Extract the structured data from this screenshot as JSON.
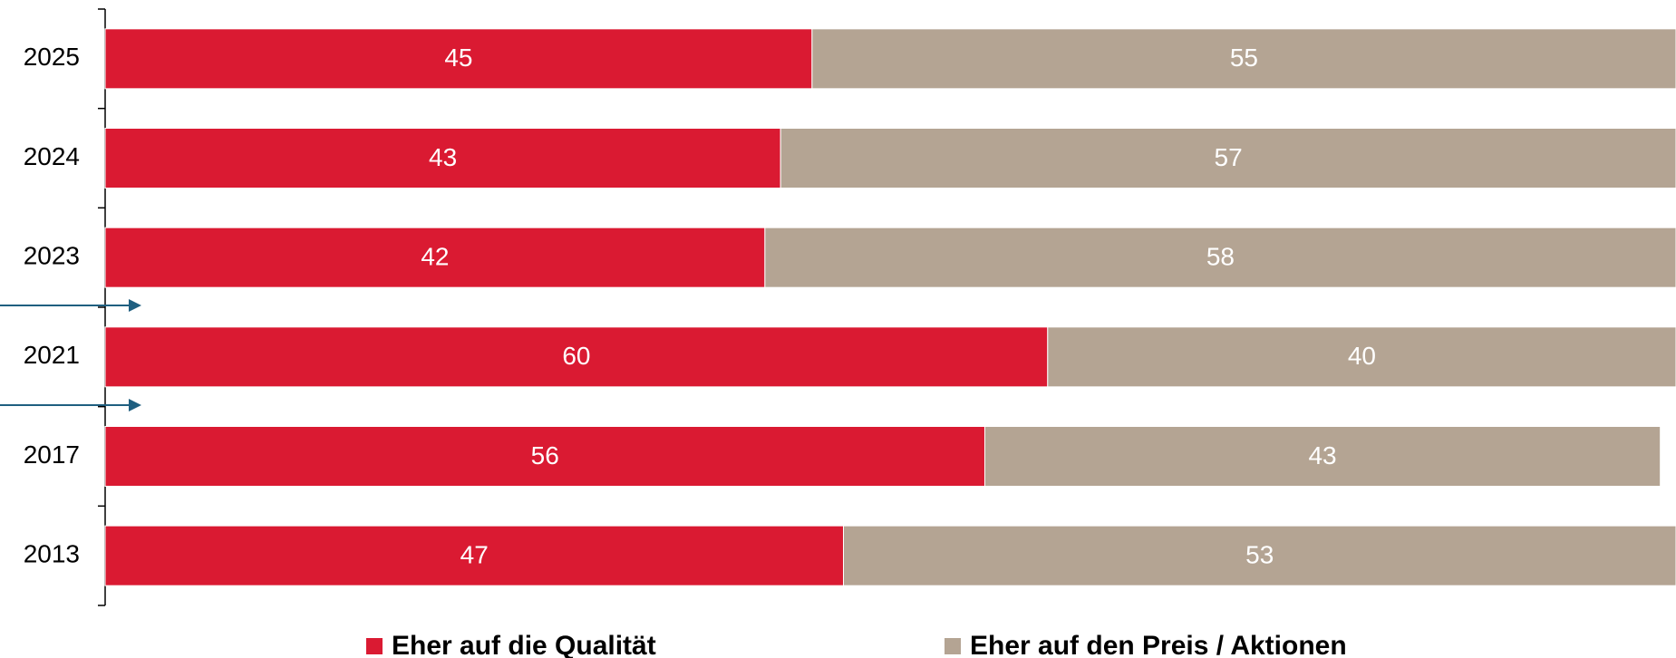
{
  "chart_data": {
    "type": "stacked-bar-horizontal",
    "categories": [
      "2025",
      "2024",
      "2023",
      "2021",
      "2017",
      "2013"
    ],
    "series": [
      {
        "name": "Eher auf die Qualität",
        "color": "#da1a32",
        "values": [
          45,
          43,
          42,
          60,
          56,
          47
        ]
      },
      {
        "name": "Eher auf den Preis / Aktionen",
        "color": "#b4a493",
        "values": [
          55,
          57,
          58,
          40,
          43,
          53
        ]
      }
    ],
    "xlim": [
      0,
      100
    ]
  }
}
